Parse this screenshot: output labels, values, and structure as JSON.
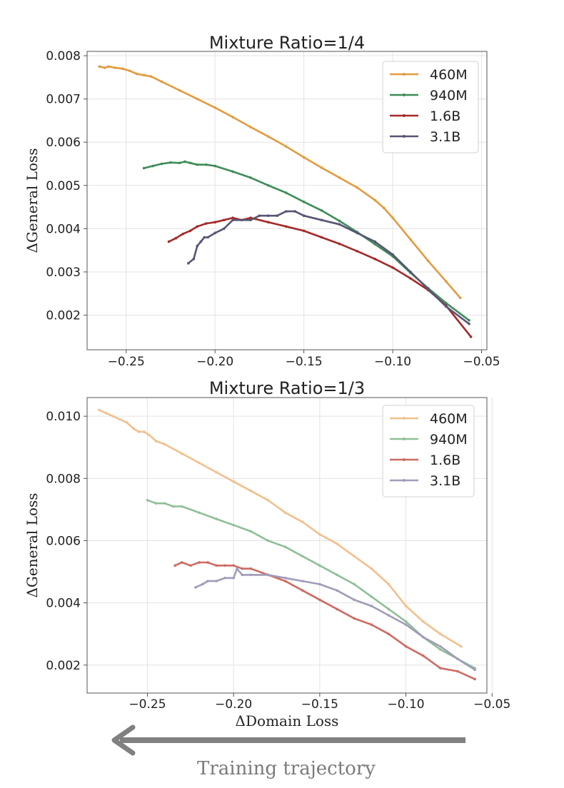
{
  "chart_data": [
    {
      "type": "line",
      "title": "Mixture Ratio=1/4",
      "xlabel": "",
      "ylabel": "ΔGeneral  Loss",
      "xlim": [
        -0.272,
        -0.047
      ],
      "ylim": [
        0.0012,
        0.0081
      ],
      "xticks": [
        -0.25,
        -0.2,
        -0.15,
        -0.1,
        -0.05
      ],
      "xtick_labels": [
        "−0.25",
        "−0.20",
        "−0.15",
        "−0.10",
        "−0.05"
      ],
      "yticks": [
        0.002,
        0.003,
        0.004,
        0.005,
        0.006,
        0.007,
        0.008
      ],
      "ytick_labels": [
        "0.002",
        "0.003",
        "0.004",
        "0.005",
        "0.006",
        "0.007",
        "0.008"
      ],
      "grid": true,
      "legend": "top-right",
      "series": [
        {
          "name": "460M",
          "color": "#e39b3f",
          "x": [
            -0.265,
            -0.262,
            -0.26,
            -0.256,
            -0.252,
            -0.248,
            -0.244,
            -0.24,
            -0.236,
            -0.23,
            -0.22,
            -0.21,
            -0.2,
            -0.19,
            -0.18,
            -0.17,
            -0.16,
            -0.15,
            -0.14,
            -0.13,
            -0.12,
            -0.11,
            -0.105,
            -0.1,
            -0.09,
            -0.08,
            -0.07,
            -0.062
          ],
          "y": [
            0.00775,
            0.00772,
            0.00775,
            0.00772,
            0.0077,
            0.00765,
            0.00758,
            0.00755,
            0.00752,
            0.0074,
            0.0072,
            0.007,
            0.0068,
            0.00658,
            0.00635,
            0.00613,
            0.0059,
            0.00565,
            0.00541,
            0.00518,
            0.00495,
            0.00466,
            0.00448,
            0.00425,
            0.00375,
            0.00325,
            0.00278,
            0.0024
          ]
        },
        {
          "name": "940M",
          "color": "#3e8c57",
          "x": [
            -0.24,
            -0.235,
            -0.23,
            -0.225,
            -0.22,
            -0.217,
            -0.214,
            -0.21,
            -0.205,
            -0.2,
            -0.19,
            -0.18,
            -0.17,
            -0.16,
            -0.15,
            -0.14,
            -0.13,
            -0.12,
            -0.11,
            -0.1,
            -0.09,
            -0.08,
            -0.07,
            -0.057
          ],
          "y": [
            0.0054,
            0.00545,
            0.0055,
            0.00553,
            0.00552,
            0.00555,
            0.00552,
            0.00548,
            0.00548,
            0.00545,
            0.00532,
            0.00518,
            0.005,
            0.00483,
            0.00462,
            0.00442,
            0.00418,
            0.00392,
            0.00364,
            0.00336,
            0.00298,
            0.00262,
            0.00228,
            0.00188
          ]
        },
        {
          "name": "1.6B",
          "color": "#a52a2a",
          "x": [
            -0.226,
            -0.222,
            -0.218,
            -0.214,
            -0.21,
            -0.205,
            -0.2,
            -0.195,
            -0.19,
            -0.185,
            -0.18,
            -0.17,
            -0.16,
            -0.15,
            -0.14,
            -0.13,
            -0.12,
            -0.11,
            -0.1,
            -0.09,
            -0.08,
            -0.07,
            -0.056
          ],
          "y": [
            0.0037,
            0.00378,
            0.00388,
            0.00395,
            0.00405,
            0.00412,
            0.00415,
            0.0042,
            0.00425,
            0.0042,
            0.00425,
            0.00415,
            0.00405,
            0.00395,
            0.0038,
            0.00365,
            0.00348,
            0.0033,
            0.0031,
            0.00285,
            0.00258,
            0.00222,
            0.0015
          ]
        },
        {
          "name": "3.1B",
          "color": "#575574",
          "x": [
            -0.215,
            -0.212,
            -0.21,
            -0.208,
            -0.206,
            -0.204,
            -0.2,
            -0.195,
            -0.19,
            -0.185,
            -0.18,
            -0.175,
            -0.17,
            -0.165,
            -0.16,
            -0.155,
            -0.15,
            -0.14,
            -0.13,
            -0.12,
            -0.11,
            -0.1,
            -0.09,
            -0.08,
            -0.07,
            -0.057
          ],
          "y": [
            0.0032,
            0.0033,
            0.0036,
            0.0037,
            0.0038,
            0.0038,
            0.0039,
            0.004,
            0.0042,
            0.0042,
            0.0042,
            0.0043,
            0.0043,
            0.0043,
            0.0044,
            0.0044,
            0.0043,
            0.0042,
            0.0041,
            0.0039,
            0.0037,
            0.0034,
            0.003,
            0.0026,
            0.0022,
            0.0018
          ]
        }
      ]
    },
    {
      "type": "line",
      "title": "Mixture Ratio=1/3",
      "xlabel": "ΔDomain  Loss",
      "ylabel": "ΔGeneral  Loss",
      "xlim": [
        -0.285,
        -0.053
      ],
      "ylim": [
        0.0011,
        0.0106
      ],
      "xticks": [
        -0.25,
        -0.2,
        -0.15,
        -0.1,
        -0.05
      ],
      "xtick_labels": [
        "−0.25",
        "−0.20",
        "−0.15",
        "−0.10",
        "−0.05"
      ],
      "yticks": [
        0.002,
        0.004,
        0.006,
        0.008,
        0.01
      ],
      "ytick_labels": [
        "0.002",
        "0.004",
        "0.006",
        "0.008",
        "0.010"
      ],
      "grid": true,
      "legend": "top-right",
      "series": [
        {
          "name": "460M",
          "color": "#f2c08d",
          "x": [
            -0.278,
            -0.274,
            -0.27,
            -0.266,
            -0.262,
            -0.258,
            -0.255,
            -0.252,
            -0.249,
            -0.245,
            -0.24,
            -0.23,
            -0.22,
            -0.21,
            -0.2,
            -0.19,
            -0.18,
            -0.17,
            -0.16,
            -0.15,
            -0.14,
            -0.13,
            -0.12,
            -0.11,
            -0.1,
            -0.09,
            -0.08,
            -0.068
          ],
          "y": [
            0.0102,
            0.0101,
            0.01,
            0.0099,
            0.0098,
            0.0096,
            0.0095,
            0.0095,
            0.0094,
            0.0092,
            0.0091,
            0.0088,
            0.0085,
            0.0082,
            0.0079,
            0.0076,
            0.0073,
            0.0069,
            0.0066,
            0.0062,
            0.0059,
            0.0055,
            0.0051,
            0.0046,
            0.0039,
            0.0034,
            0.003,
            0.0026
          ]
        },
        {
          "name": "940M",
          "color": "#8fbf98",
          "x": [
            -0.25,
            -0.245,
            -0.24,
            -0.235,
            -0.23,
            -0.22,
            -0.21,
            -0.2,
            -0.19,
            -0.18,
            -0.17,
            -0.16,
            -0.15,
            -0.14,
            -0.13,
            -0.12,
            -0.11,
            -0.1,
            -0.09,
            -0.08,
            -0.07,
            -0.06
          ],
          "y": [
            0.0073,
            0.0072,
            0.0072,
            0.0071,
            0.0071,
            0.0069,
            0.0067,
            0.0065,
            0.0063,
            0.006,
            0.0058,
            0.0055,
            0.0052,
            0.0049,
            0.0046,
            0.0042,
            0.0038,
            0.0034,
            0.0029,
            0.0025,
            0.0022,
            0.0019
          ]
        },
        {
          "name": "1.6B",
          "color": "#cd6b62",
          "x": [
            -0.234,
            -0.23,
            -0.225,
            -0.22,
            -0.215,
            -0.21,
            -0.205,
            -0.2,
            -0.195,
            -0.19,
            -0.18,
            -0.17,
            -0.16,
            -0.15,
            -0.14,
            -0.13,
            -0.12,
            -0.11,
            -0.1,
            -0.09,
            -0.08,
            -0.07,
            -0.06
          ],
          "y": [
            0.0052,
            0.0053,
            0.0052,
            0.0053,
            0.0053,
            0.0052,
            0.0052,
            0.0052,
            0.0051,
            0.0051,
            0.0049,
            0.0047,
            0.0044,
            0.0041,
            0.0038,
            0.0035,
            0.0033,
            0.003,
            0.0026,
            0.0023,
            0.0019,
            0.0018,
            0.00155
          ]
        },
        {
          "name": "3.1B",
          "color": "#a09cb8",
          "x": [
            -0.222,
            -0.218,
            -0.215,
            -0.21,
            -0.205,
            -0.2,
            -0.198,
            -0.195,
            -0.19,
            -0.18,
            -0.17,
            -0.16,
            -0.15,
            -0.14,
            -0.13,
            -0.12,
            -0.11,
            -0.1,
            -0.09,
            -0.08,
            -0.07,
            -0.06
          ],
          "y": [
            0.0045,
            0.0046,
            0.0047,
            0.0047,
            0.0048,
            0.0048,
            0.0051,
            0.0049,
            0.0049,
            0.0049,
            0.0048,
            0.0047,
            0.0046,
            0.0044,
            0.0041,
            0.0039,
            0.0036,
            0.0033,
            0.0029,
            0.0026,
            0.0022,
            0.00185
          ]
        }
      ]
    }
  ],
  "footer": {
    "arrow_color": "#808080",
    "caption": "Training trajectory"
  }
}
